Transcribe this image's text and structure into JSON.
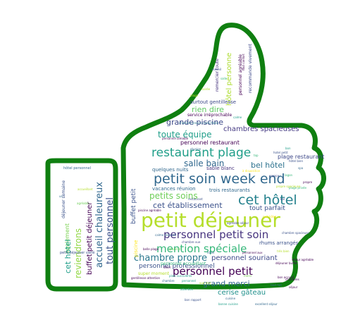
{
  "palette": {
    "outline": "#0f7f10",
    "yellow_green": "#b5de2b",
    "green": "#35b779",
    "teal": "#1f9e89",
    "blue": "#31688e",
    "indigo": "#3e4989",
    "purple": "#440154"
  },
  "words": [
    {
      "text": "petit déjeuner",
      "color": "#b5de2b"
    },
    {
      "text": "petit soin week end",
      "color": "#31688e"
    },
    {
      "text": "cet hôtel",
      "color": "#26828e"
    },
    {
      "text": "restaurant plage",
      "color": "#1f9e89"
    },
    {
      "text": "personnel petit soin",
      "color": "#46337e"
    },
    {
      "text": "mention spéciale",
      "color": "#35b779"
    },
    {
      "text": "personnel petit",
      "color": "#440154"
    },
    {
      "text": "chambre propre",
      "color": "#2a788e"
    },
    {
      "text": "petits soins",
      "color": "#6ece58"
    },
    {
      "text": "toute équipe",
      "color": "#1f9e89"
    },
    {
      "text": "salle bain",
      "color": "#31688e"
    },
    {
      "text": "grande piscine",
      "color": "#3e4989"
    },
    {
      "text": "chambres spacieuses",
      "color": "#443983"
    },
    {
      "text": "bel hôtel",
      "color": "#2c728e"
    },
    {
      "text": "rien dire",
      "color": "#5ec962"
    },
    {
      "text": "cet établissement",
      "color": "#3b528b"
    },
    {
      "text": "grand merci",
      "color": "#31688e"
    },
    {
      "text": "cerise gâteau",
      "color": "#21918c"
    },
    {
      "text": "personnel souriant",
      "color": "#3e4989"
    },
    {
      "text": "personnel professionnel",
      "color": "#3b528b"
    },
    {
      "text": "tout parfait",
      "color": "#3b528b"
    },
    {
      "text": "hôtel personne",
      "color": "#addc30"
    },
    {
      "text": "accueil chaleureux",
      "color": "#31688e"
    },
    {
      "text": "tout personnel",
      "color": "#3b528b"
    },
    {
      "text": "buffet petit déjeuner",
      "color": "#440154"
    },
    {
      "text": "reviendrons",
      "color": "#90d743"
    },
    {
      "text": "également",
      "color": "#7ad151"
    },
    {
      "text": "cet hotel",
      "color": "#1f9e89"
    },
    {
      "text": "buffet petit",
      "color": "#3b528b"
    },
    {
      "text": "personnel restaurant",
      "color": "#440154"
    },
    {
      "text": "plage restaurant",
      "color": "#3e4989"
    },
    {
      "text": "surtout gentillesse",
      "color": "#3e4989"
    },
    {
      "text": "service irréprochable",
      "color": "#440154"
    },
    {
      "text": "trois restaurants",
      "color": "#31688e"
    },
    {
      "text": "vacances réunion",
      "color": "#31688e"
    },
    {
      "text": "quelques nuits",
      "color": "#31688e"
    },
    {
      "text": "rhums arrangés",
      "color": "#3b528b"
    },
    {
      "text": "super moment",
      "color": "#b5de2b"
    },
    {
      "text": "personnel agréable",
      "color": "#440154"
    },
    {
      "text": "recommande vivement",
      "color": "#3e4989"
    },
    {
      "text": "sable blanc",
      "color": "#46337e"
    },
    {
      "text": "personnel accueillant",
      "color": "#35b779"
    },
    {
      "text": "piscine",
      "color": "#fde725"
    },
    {
      "text": "petit déjeuner varié",
      "color": "#3b528b"
    },
    {
      "text": "déjeuner semaine",
      "color": "#3b528b"
    },
    {
      "text": "hôtel personnel",
      "color": "#31688e"
    },
    {
      "text": "remercier toute",
      "color": "#46337e"
    },
    {
      "text": "gentillesse attention",
      "color": "#440154"
    },
    {
      "text": "chambre propre confortable",
      "color": "#2a788e"
    },
    {
      "text": "plats succulents",
      "color": "#1f9e89"
    },
    {
      "text": "grand lit",
      "color": "#6ece58"
    },
    {
      "text": "chambre vue",
      "color": "#3e4989"
    },
    {
      "text": "nuit hôtel",
      "color": "#fde725"
    },
    {
      "text": "bon accueil",
      "color": "#440154"
    },
    {
      "text": "tout fait",
      "color": "#31688e"
    },
    {
      "text": "hôtel bien",
      "color": "#3b528b"
    },
    {
      "text": "personnel aux",
      "color": "#440154"
    },
    {
      "text": "plage privée",
      "color": "#35b779"
    },
    {
      "text": "soirée",
      "color": "#b5de2b"
    },
    {
      "text": "cuisine",
      "color": "#31688e"
    },
    {
      "text": "à disposition",
      "color": "#fde725"
    },
    {
      "text": "belle plage",
      "color": "#440154"
    },
    {
      "text": "merci",
      "color": "#7ad151"
    },
    {
      "text": "bonne cuisine",
      "color": "#1f9e89"
    },
    {
      "text": "excellent séjour",
      "color": "#31688e"
    },
    {
      "text": "propre spacieuse",
      "color": "#b5de2b"
    },
    {
      "text": "espace",
      "color": "#3e4989"
    },
    {
      "text": "bon",
      "color": "#1f9e89"
    },
    {
      "text": "séjour agréable",
      "color": "#440154"
    },
    {
      "text": "calme relaxant",
      "color": "#31688e"
    },
    {
      "text": "piscine agréable",
      "color": "#440154"
    },
    {
      "text": "hotel petit",
      "color": "#3b528b"
    },
    {
      "text": "tout confort",
      "color": "#440154"
    },
    {
      "text": "accueillant",
      "color": "#b5de2b"
    },
    {
      "text": "agréable",
      "color": "#6ece58"
    },
    {
      "text": "un ",
      "color": "#31688e"
    },
    {
      "text": "déjeuner buffet",
      "color": "#440154"
    },
    {
      "text": "chambre",
      "color": "#31688e"
    },
    {
      "text": "attention",
      "color": "#1f9e89"
    },
    {
      "text": "bon rapport",
      "color": "#3b528b"
    },
    {
      "text": "chambre spacieuse",
      "color": "#3b528b"
    },
    {
      "text": "personnel aimable",
      "color": "#440154"
    },
    {
      "text": "lagon",
      "color": "#35b779"
    },
    {
      "text": "agréable séjour",
      "color": "#3e4989"
    },
    {
      "text": "hôtel",
      "color": "#31688e"
    },
    {
      "text": "très bien",
      "color": "#b5de2b"
    },
    {
      "text": "personnel",
      "color": "#1f9e89"
    },
    {
      "text": "dîner",
      "color": "#440154"
    },
    {
      "text": "restaurant",
      "color": "#3b528b"
    },
    {
      "text": "réunion",
      "color": "#31688e"
    },
    {
      "text": "chambres",
      "color": "#440154"
    },
    {
      "text": "vue mer",
      "color": "#b5de2b"
    },
    {
      "text": "top",
      "color": "#35b779"
    },
    {
      "text": "bar",
      "color": "#3e4989"
    },
    {
      "text": "propre",
      "color": "#440154"
    },
    {
      "text": "spa",
      "color": "#31688e"
    },
    {
      "text": "calme",
      "color": "#1f9e89"
    },
    {
      "text": "accueil",
      "color": "#3b528b"
    },
    {
      "text": "séjour",
      "color": "#440154"
    },
    {
      "text": "plage",
      "color": "#b5de2b"
    },
    {
      "text": "salle",
      "color": "#35b779"
    }
  ]
}
